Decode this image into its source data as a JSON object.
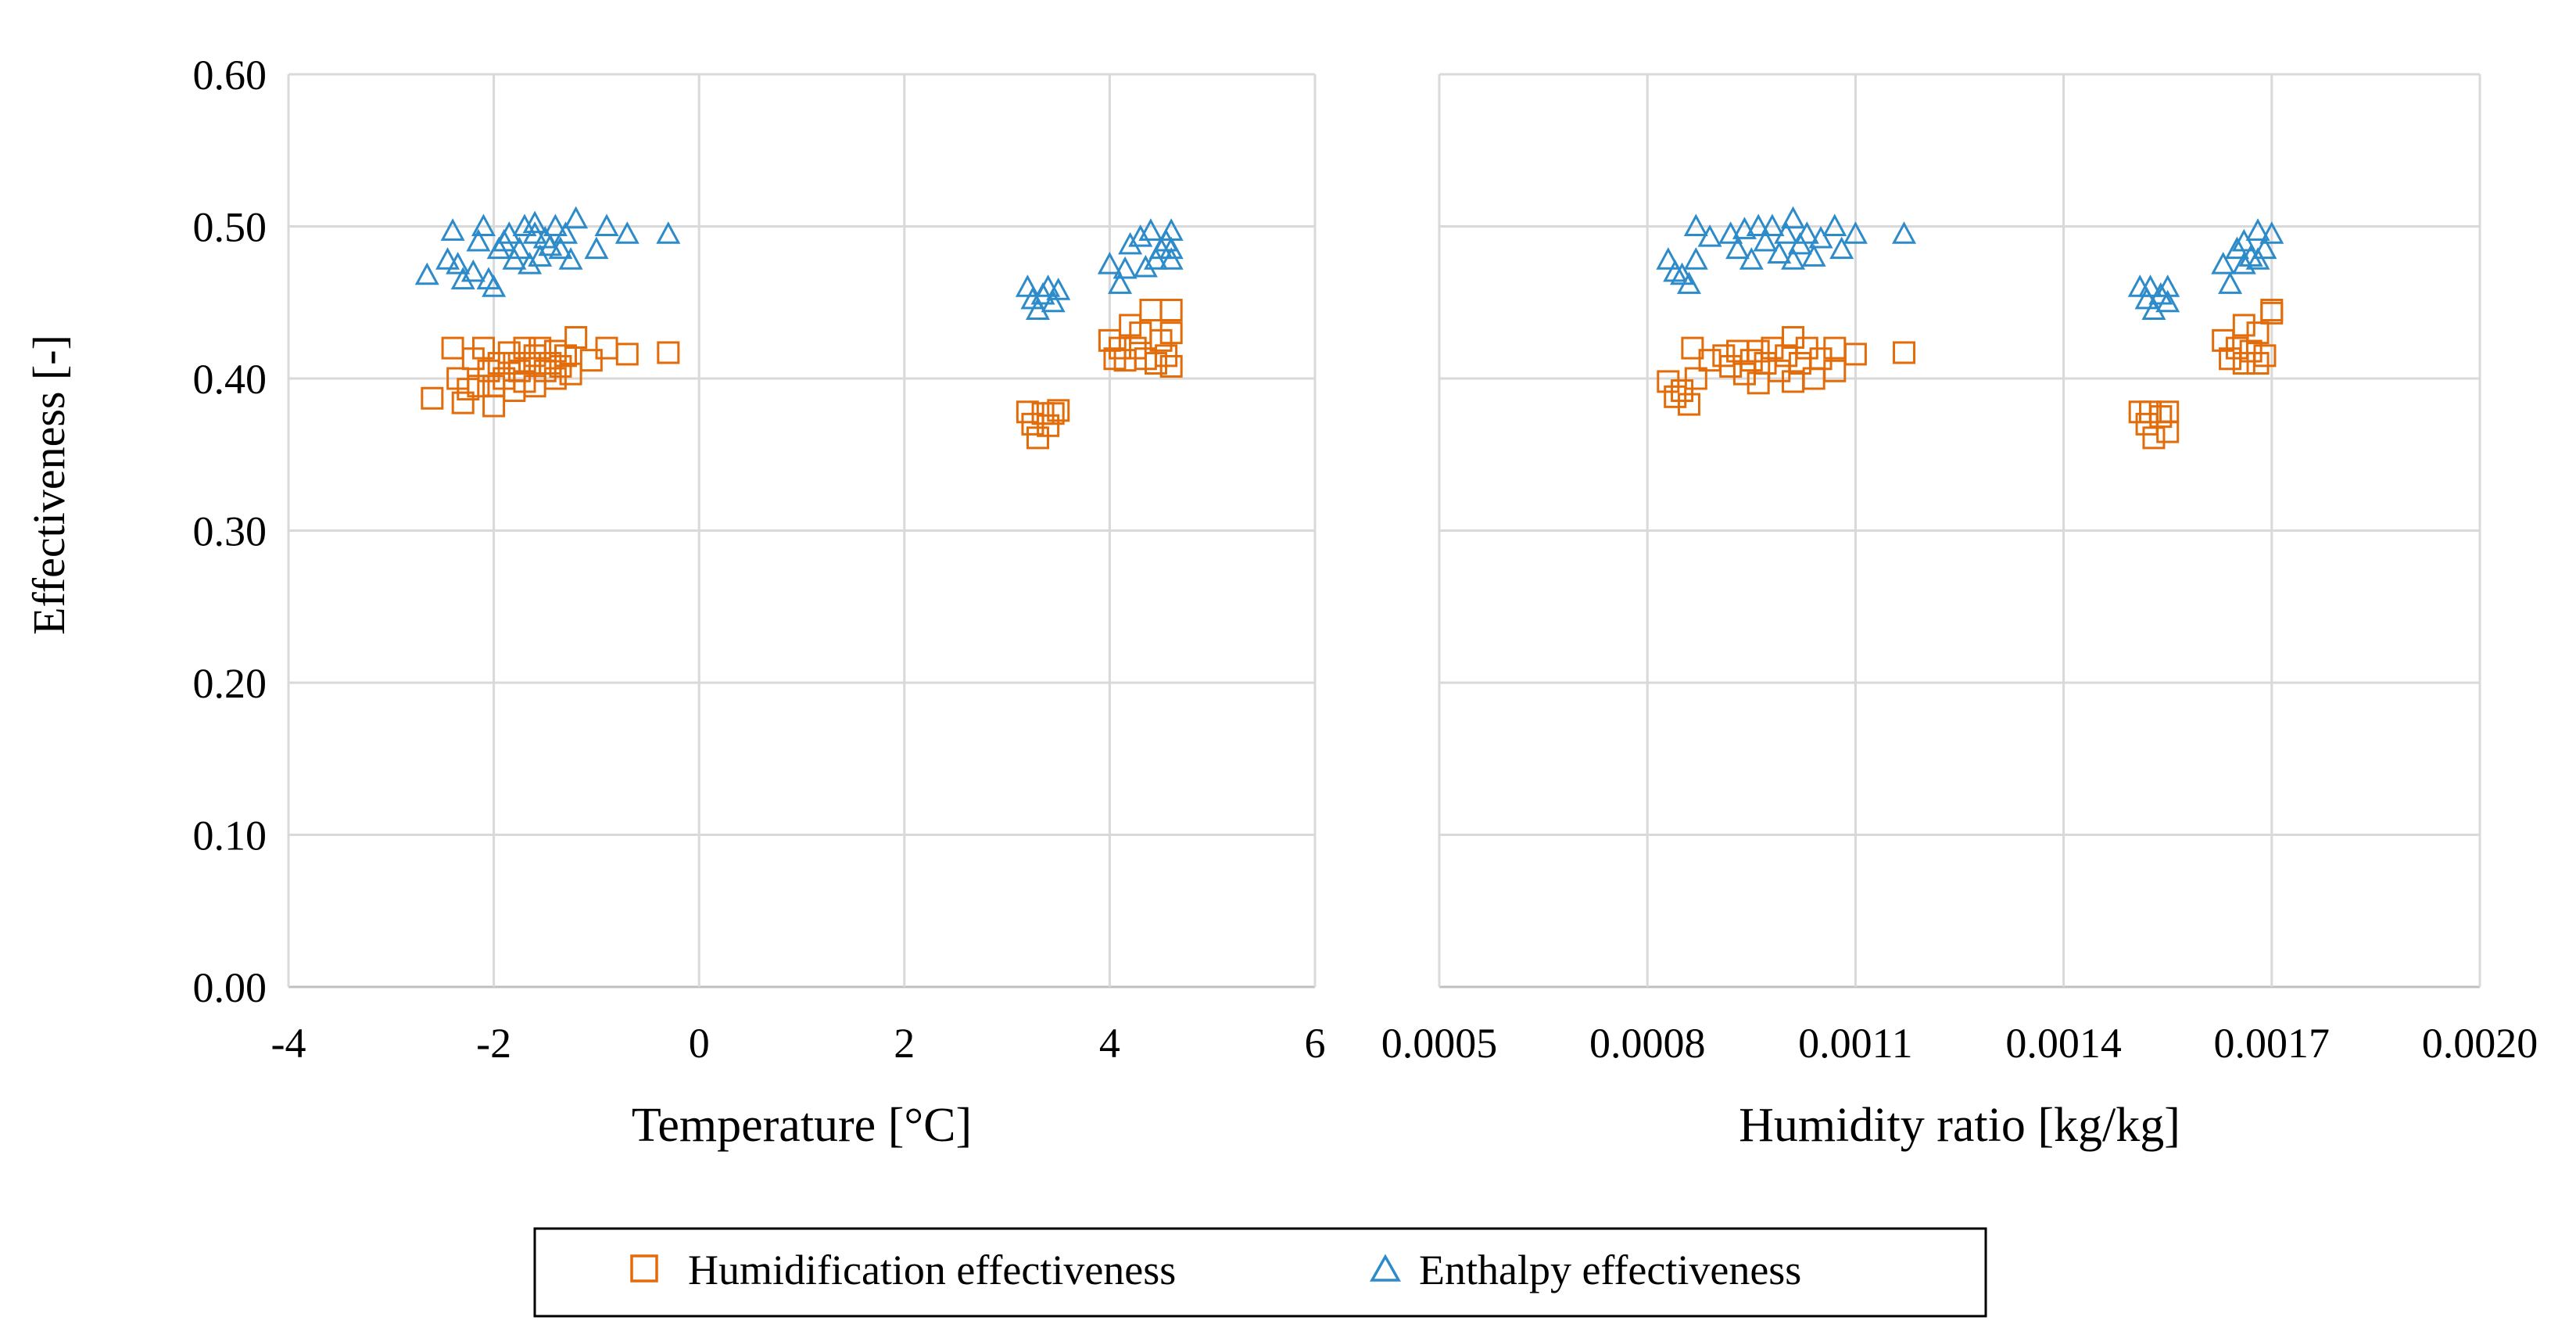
{
  "chart_data": {
    "type": "scatter",
    "shared": {
      "ylabel": "Effectiveness [-]",
      "ylim": [
        0,
        0.6
      ],
      "yticks": [
        0.0,
        0.1,
        0.2,
        0.3,
        0.4,
        0.5,
        0.6
      ],
      "ytick_labels": [
        "0.00",
        "0.10",
        "0.20",
        "0.30",
        "0.40",
        "0.50",
        "0.60"
      ],
      "grid": true,
      "legend_placement": "bottom-center",
      "legend": [
        {
          "name": "Humidification effectiveness",
          "marker": "square",
          "color": "#e36c0a"
        },
        {
          "name": "Enthalpy effectiveness",
          "marker": "triangle",
          "color": "#2e8bc9"
        }
      ]
    },
    "panels": [
      {
        "xlabel": "Temperature [°C]",
        "xlim": [
          -4,
          6
        ],
        "xticks": [
          -4,
          -2,
          0,
          2,
          4,
          6
        ],
        "xtick_labels": [
          "-4",
          "-2",
          "0",
          "2",
          "4",
          "6"
        ],
        "series": [
          {
            "name": "Humidification effectiveness",
            "marker": "square",
            "color": "#e36c0a",
            "points": [
              [
                -2.6,
                0.387
              ],
              [
                -2.4,
                0.42
              ],
              [
                -2.35,
                0.4
              ],
              [
                -2.3,
                0.384
              ],
              [
                -2.25,
                0.393
              ],
              [
                -2.2,
                0.413
              ],
              [
                -2.15,
                0.395
              ],
              [
                -2.1,
                0.42
              ],
              [
                -2.05,
                0.405
              ],
              [
                -2.0,
                0.382
              ],
              [
                -2.0,
                0.395
              ],
              [
                -1.95,
                0.41
              ],
              [
                -1.9,
                0.4
              ],
              [
                -1.85,
                0.417
              ],
              [
                -1.8,
                0.392
              ],
              [
                -1.8,
                0.41
              ],
              [
                -1.75,
                0.405
              ],
              [
                -1.7,
                0.42
              ],
              [
                -1.7,
                0.398
              ],
              [
                -1.65,
                0.41
              ],
              [
                -1.6,
                0.395
              ],
              [
                -1.6,
                0.415
              ],
              [
                -1.55,
                0.42
              ],
              [
                -1.5,
                0.405
              ],
              [
                -1.45,
                0.41
              ],
              [
                -1.4,
                0.4
              ],
              [
                -1.4,
                0.418
              ],
              [
                -1.35,
                0.408
              ],
              [
                -1.3,
                0.415
              ],
              [
                -1.25,
                0.403
              ],
              [
                -1.2,
                0.427
              ],
              [
                -1.05,
                0.412
              ],
              [
                -0.9,
                0.42
              ],
              [
                -0.7,
                0.416
              ],
              [
                -0.3,
                0.417
              ],
              [
                3.2,
                0.378
              ],
              [
                3.25,
                0.37
              ],
              [
                3.3,
                0.361
              ],
              [
                3.35,
                0.377
              ],
              [
                3.4,
                0.369
              ],
              [
                3.45,
                0.377
              ],
              [
                3.5,
                0.379
              ],
              [
                4.0,
                0.425
              ],
              [
                4.05,
                0.413
              ],
              [
                4.1,
                0.42
              ],
              [
                4.15,
                0.412
              ],
              [
                4.2,
                0.435
              ],
              [
                4.25,
                0.42
              ],
              [
                4.3,
                0.43
              ],
              [
                4.35,
                0.413
              ],
              [
                4.4,
                0.445
              ],
              [
                4.45,
                0.41
              ],
              [
                4.5,
                0.425
              ],
              [
                4.55,
                0.415
              ],
              [
                4.6,
                0.445
              ],
              [
                4.6,
                0.43
              ],
              [
                4.6,
                0.408
              ]
            ]
          },
          {
            "name": "Enthalpy effectiveness",
            "marker": "triangle",
            "color": "#2e8bc9",
            "points": [
              [
                -2.65,
                0.468
              ],
              [
                -2.45,
                0.478
              ],
              [
                -2.4,
                0.497
              ],
              [
                -2.35,
                0.475
              ],
              [
                -2.3,
                0.465
              ],
              [
                -2.2,
                0.47
              ],
              [
                -2.15,
                0.49
              ],
              [
                -2.1,
                0.5
              ],
              [
                -2.05,
                0.465
              ],
              [
                -2.0,
                0.46
              ],
              [
                -1.95,
                0.485
              ],
              [
                -1.9,
                0.49
              ],
              [
                -1.85,
                0.495
              ],
              [
                -1.8,
                0.478
              ],
              [
                -1.75,
                0.485
              ],
              [
                -1.7,
                0.5
              ],
              [
                -1.65,
                0.475
              ],
              [
                -1.6,
                0.495
              ],
              [
                -1.6,
                0.502
              ],
              [
                -1.55,
                0.48
              ],
              [
                -1.5,
                0.492
              ],
              [
                -1.45,
                0.487
              ],
              [
                -1.4,
                0.5
              ],
              [
                -1.35,
                0.485
              ],
              [
                -1.3,
                0.495
              ],
              [
                -1.25,
                0.478
              ],
              [
                -1.2,
                0.505
              ],
              [
                -1.0,
                0.485
              ],
              [
                -0.9,
                0.5
              ],
              [
                -0.7,
                0.495
              ],
              [
                -0.3,
                0.495
              ],
              [
                3.2,
                0.46
              ],
              [
                3.25,
                0.452
              ],
              [
                3.3,
                0.445
              ],
              [
                3.35,
                0.455
              ],
              [
                3.4,
                0.46
              ],
              [
                3.45,
                0.45
              ],
              [
                3.5,
                0.458
              ],
              [
                4.0,
                0.475
              ],
              [
                4.1,
                0.462
              ],
              [
                4.15,
                0.472
              ],
              [
                4.2,
                0.488
              ],
              [
                4.3,
                0.493
              ],
              [
                4.35,
                0.473
              ],
              [
                4.4,
                0.497
              ],
              [
                4.45,
                0.478
              ],
              [
                4.5,
                0.485
              ],
              [
                4.55,
                0.49
              ],
              [
                4.6,
                0.497
              ],
              [
                4.6,
                0.485
              ],
              [
                4.6,
                0.478
              ]
            ]
          }
        ]
      },
      {
        "xlabel": "Humidity ratio [kg/kg]",
        "xlim": [
          0.0005,
          0.002
        ],
        "xticks": [
          0.0005,
          0.0008,
          0.0011,
          0.0014,
          0.0017,
          0.002
        ],
        "xtick_labels": [
          "0.0005",
          "0.0008",
          "0.0011",
          "0.0014",
          "0.0017",
          "0.0020"
        ],
        "series": [
          {
            "name": "Humidification effectiveness",
            "marker": "square",
            "color": "#e36c0a",
            "points": [
              [
                0.00083,
                0.398
              ],
              [
                0.00084,
                0.388
              ],
              [
                0.00085,
                0.392
              ],
              [
                0.00086,
                0.383
              ],
              [
                0.000865,
                0.42
              ],
              [
                0.00087,
                0.4
              ],
              [
                0.00089,
                0.412
              ],
              [
                0.00091,
                0.415
              ],
              [
                0.00092,
                0.408
              ],
              [
                0.00093,
                0.418
              ],
              [
                0.00094,
                0.403
              ],
              [
                0.00095,
                0.412
              ],
              [
                0.00096,
                0.397
              ],
              [
                0.00096,
                0.418
              ],
              [
                0.00097,
                0.41
              ],
              [
                0.00098,
                0.42
              ],
              [
                0.00099,
                0.405
              ],
              [
                0.001,
                0.415
              ],
              [
                0.00101,
                0.398
              ],
              [
                0.00101,
                0.427
              ],
              [
                0.00102,
                0.41
              ],
              [
                0.00103,
                0.42
              ],
              [
                0.00104,
                0.4
              ],
              [
                0.00105,
                0.413
              ],
              [
                0.00107,
                0.42
              ],
              [
                0.00107,
                0.405
              ],
              [
                0.0011,
                0.416
              ],
              [
                0.00117,
                0.417
              ],
              [
                0.00151,
                0.378
              ],
              [
                0.00152,
                0.37
              ],
              [
                0.001525,
                0.378
              ],
              [
                0.00153,
                0.361
              ],
              [
                0.00154,
                0.375
              ],
              [
                0.00155,
                0.365
              ],
              [
                0.00155,
                0.378
              ],
              [
                0.00163,
                0.425
              ],
              [
                0.00164,
                0.413
              ],
              [
                0.00165,
                0.42
              ],
              [
                0.00166,
                0.41
              ],
              [
                0.00166,
                0.435
              ],
              [
                0.00167,
                0.418
              ],
              [
                0.00168,
                0.43
              ],
              [
                0.00168,
                0.41
              ],
              [
                0.00169,
                0.415
              ],
              [
                0.0017,
                0.445
              ],
              [
                0.0017,
                0.443
              ]
            ]
          },
          {
            "name": "Enthalpy effectiveness",
            "marker": "triangle",
            "color": "#2e8bc9",
            "points": [
              [
                0.00083,
                0.478
              ],
              [
                0.00084,
                0.47
              ],
              [
                0.00085,
                0.468
              ],
              [
                0.00086,
                0.462
              ],
              [
                0.00087,
                0.5
              ],
              [
                0.00087,
                0.478
              ],
              [
                0.00089,
                0.493
              ],
              [
                0.00092,
                0.495
              ],
              [
                0.00093,
                0.485
              ],
              [
                0.00094,
                0.498
              ],
              [
                0.00095,
                0.478
              ],
              [
                0.00096,
                0.5
              ],
              [
                0.00097,
                0.49
              ],
              [
                0.00098,
                0.5
              ],
              [
                0.00099,
                0.482
              ],
              [
                0.001,
                0.495
              ],
              [
                0.00101,
                0.478
              ],
              [
                0.00101,
                0.505
              ],
              [
                0.00102,
                0.488
              ],
              [
                0.00103,
                0.495
              ],
              [
                0.00104,
                0.48
              ],
              [
                0.00105,
                0.492
              ],
              [
                0.00107,
                0.5
              ],
              [
                0.00108,
                0.485
              ],
              [
                0.0011,
                0.495
              ],
              [
                0.00117,
                0.495
              ],
              [
                0.00151,
                0.46
              ],
              [
                0.00152,
                0.452
              ],
              [
                0.001525,
                0.46
              ],
              [
                0.00153,
                0.445
              ],
              [
                0.00154,
                0.455
              ],
              [
                0.00155,
                0.46
              ],
              [
                0.00155,
                0.45
              ],
              [
                0.00163,
                0.475
              ],
              [
                0.00164,
                0.462
              ],
              [
                0.00165,
                0.485
              ],
              [
                0.00166,
                0.475
              ],
              [
                0.00166,
                0.49
              ],
              [
                0.00167,
                0.48
              ],
              [
                0.00168,
                0.497
              ],
              [
                0.00168,
                0.478
              ],
              [
                0.00169,
                0.485
              ],
              [
                0.0017,
                0.495
              ]
            ]
          }
        ]
      }
    ]
  }
}
